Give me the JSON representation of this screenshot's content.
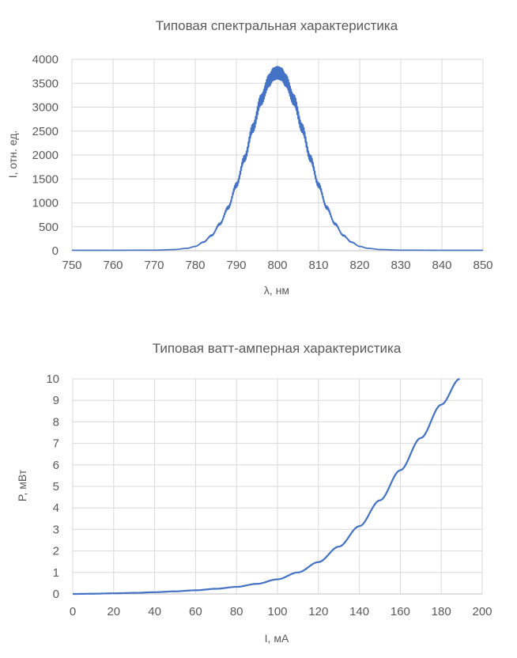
{
  "chart_data": [
    {
      "type": "line",
      "title": "Типовая спектральная характеристика",
      "xlabel": "λ, нм",
      "ylabel": "I, отн. ед.",
      "xlim": [
        750,
        850
      ],
      "ylim": [
        0,
        4000
      ],
      "x_ticks": [
        750,
        760,
        770,
        780,
        790,
        800,
        810,
        820,
        830,
        840,
        850
      ],
      "y_ticks": [
        0,
        500,
        1000,
        1500,
        2000,
        2500,
        3000,
        3500,
        4000
      ],
      "grid": true,
      "legend": "none",
      "color": "#4472c4",
      "series": [
        {
          "x": [
            750,
            760,
            770,
            775,
            778,
            780,
            782,
            784,
            786,
            788,
            790,
            792,
            794,
            796,
            798,
            799,
            800,
            801,
            802,
            804,
            806,
            808,
            810,
            812,
            814,
            816,
            818,
            820,
            822,
            825,
            830,
            840,
            850
          ],
          "values": [
            10,
            10,
            12,
            25,
            50,
            90,
            180,
            320,
            560,
            900,
            1370,
            1930,
            2560,
            3150,
            3560,
            3690,
            3720,
            3690,
            3560,
            3150,
            2560,
            1930,
            1370,
            900,
            560,
            320,
            180,
            90,
            50,
            25,
            12,
            10,
            10
          ]
        }
      ]
    },
    {
      "type": "line",
      "title": "Типовая ватт-амперная характеристика",
      "xlabel": "I, мА",
      "ylabel": "P, мВт",
      "xlim": [
        0,
        200
      ],
      "ylim": [
        0,
        10
      ],
      "x_ticks": [
        0,
        20,
        40,
        60,
        80,
        100,
        120,
        140,
        160,
        180,
        200
      ],
      "y_ticks": [
        0,
        1,
        2,
        3,
        4,
        5,
        6,
        7,
        8,
        9,
        10
      ],
      "grid": true,
      "legend": "none",
      "color": "#4472c4",
      "series": [
        {
          "x": [
            0,
            10,
            20,
            30,
            40,
            50,
            60,
            70,
            80,
            90,
            100,
            110,
            120,
            130,
            140,
            150,
            160,
            170,
            180,
            189
          ],
          "values": [
            0.0,
            0.01,
            0.03,
            0.05,
            0.08,
            0.12,
            0.17,
            0.24,
            0.33,
            0.47,
            0.68,
            1.0,
            1.48,
            2.2,
            3.15,
            4.35,
            5.75,
            7.25,
            8.8,
            10.0
          ]
        }
      ]
    }
  ]
}
